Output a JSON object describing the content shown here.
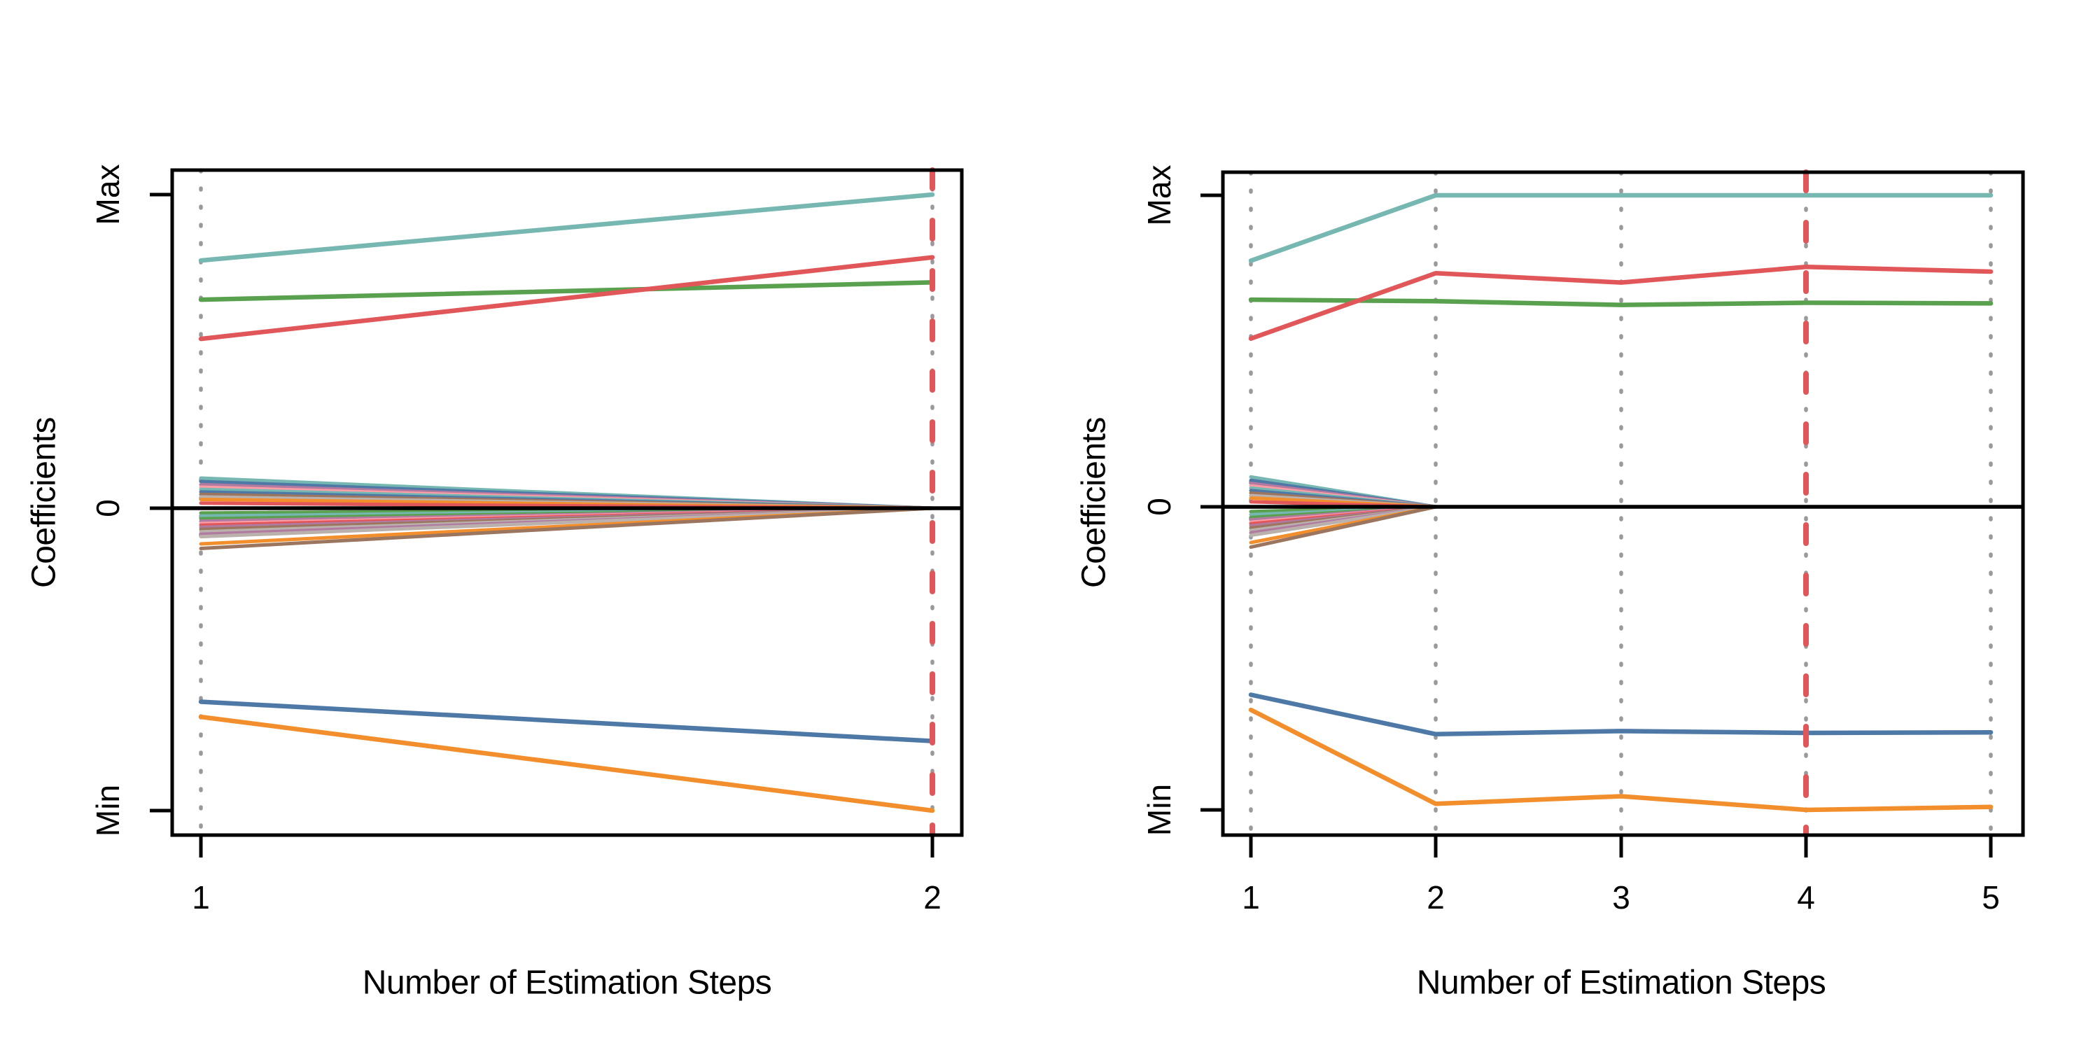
{
  "figure": {
    "background": "#ffffff",
    "axis_color": "#000000",
    "zero_line_color": "#000000",
    "grid_line_color": "#9a9a9a",
    "ref_line_color": "#e15759",
    "palette": {
      "blue": "#4e79a7",
      "orange": "#f28e2b",
      "red": "#e15759",
      "teal": "#76b7b2",
      "green": "#59a14f",
      "purple": "#b07aa1",
      "pink": "#ff9da7",
      "brown": "#9c755f",
      "gray": "#bab0ac"
    }
  },
  "chart_data": [
    {
      "type": "line",
      "title": "",
      "xlabel": "Number of Estimation Steps",
      "ylabel": "Coefficients",
      "x": [
        1,
        2
      ],
      "xtick_labels": [
        "1",
        "2"
      ],
      "ytick_labels": [
        "Max",
        "0",
        "Min"
      ],
      "ylim": [
        "Min",
        "Max"
      ],
      "grid": "vertical dotted at each step",
      "ref_vline_at_step": 2,
      "series": [
        {
          "name": "teal-max-coefficient",
          "color": "#76b7b2",
          "values": [
            0.79,
            1.0
          ]
        },
        {
          "name": "green-coefficient",
          "color": "#59a14f",
          "values": [
            0.665,
            0.72
          ]
        },
        {
          "name": "blue-coefficient",
          "color": "#4e79a7",
          "values": [
            -0.64,
            -0.77
          ]
        },
        {
          "name": "orange-min-coefficient",
          "color": "#f28e2b",
          "values": [
            -0.69,
            -1.0
          ]
        },
        {
          "name": "red-coefficient",
          "color": "#e15759",
          "values": [
            0.54,
            0.8
          ]
        }
      ],
      "cluster": {
        "note": "fan of small coefficients shrinking to exactly 0 after step 1",
        "converges_to": 0,
        "lines": [
          {
            "color": "#76b7b2",
            "start": 0.096
          },
          {
            "color": "#4e79a7",
            "start": 0.085
          },
          {
            "color": "#b07aa1",
            "start": 0.075
          },
          {
            "color": "#ff9da7",
            "start": 0.067
          },
          {
            "color": "#76b7b2",
            "start": 0.06
          },
          {
            "color": "#4e79a7",
            "start": 0.052
          },
          {
            "color": "#9c755f",
            "start": 0.044
          },
          {
            "color": "#bab0ac",
            "start": 0.036
          },
          {
            "color": "#f28e2b",
            "start": 0.028
          },
          {
            "color": "#e15759",
            "start": 0.016
          },
          {
            "color": "#59a14f",
            "start": -0.016
          },
          {
            "color": "#76b7b2",
            "start": -0.026
          },
          {
            "color": "#59a14f",
            "start": -0.035
          },
          {
            "color": "#b07aa1",
            "start": -0.043
          },
          {
            "color": "#ff9da7",
            "start": -0.051
          },
          {
            "color": "#e15759",
            "start": -0.056
          },
          {
            "color": "#b07aa1",
            "start": -0.063
          },
          {
            "color": "#9c755f",
            "start": -0.07
          },
          {
            "color": "#bab0ac",
            "start": -0.078
          },
          {
            "color": "#b07aa1",
            "start": -0.086
          },
          {
            "color": "#bab0ac",
            "start": -0.094
          },
          {
            "color": "#f28e2b",
            "start": -0.118
          },
          {
            "color": "#9c755f",
            "start": -0.133
          }
        ]
      }
    },
    {
      "type": "line",
      "title": "",
      "xlabel": "Number of Estimation Steps",
      "ylabel": "Coefficients",
      "x": [
        1,
        2,
        3,
        4,
        5
      ],
      "xtick_labels": [
        "1",
        "2",
        "3",
        "4",
        "5"
      ],
      "ytick_labels": [
        "Max",
        "0",
        "Min"
      ],
      "ylim": [
        "Min",
        "Max"
      ],
      "grid": "vertical dotted at each step",
      "ref_vline_at_step": 4,
      "series": [
        {
          "name": "teal-max-coefficient",
          "color": "#76b7b2",
          "values": [
            0.79,
            1.0,
            1.0,
            1.0,
            1.0
          ]
        },
        {
          "name": "green-coefficient",
          "color": "#59a14f",
          "values": [
            0.665,
            0.66,
            0.648,
            0.655,
            0.653
          ]
        },
        {
          "name": "blue-coefficient",
          "color": "#4e79a7",
          "values": [
            -0.62,
            -0.75,
            -0.74,
            -0.746,
            -0.744
          ]
        },
        {
          "name": "orange-min-coefficient",
          "color": "#f28e2b",
          "values": [
            -0.67,
            -0.98,
            -0.955,
            -1.0,
            -0.99
          ]
        },
        {
          "name": "red-coefficient",
          "color": "#e15759",
          "values": [
            0.54,
            0.75,
            0.72,
            0.77,
            0.755
          ]
        }
      ],
      "cluster": {
        "note": "fan of small coefficients shrinking to exactly 0 after step 1",
        "converges_to": 0,
        "lines": [
          {
            "color": "#76b7b2",
            "start": 0.096
          },
          {
            "color": "#4e79a7",
            "start": 0.085
          },
          {
            "color": "#b07aa1",
            "start": 0.075
          },
          {
            "color": "#ff9da7",
            "start": 0.067
          },
          {
            "color": "#76b7b2",
            "start": 0.06
          },
          {
            "color": "#4e79a7",
            "start": 0.052
          },
          {
            "color": "#9c755f",
            "start": 0.044
          },
          {
            "color": "#bab0ac",
            "start": 0.036
          },
          {
            "color": "#f28e2b",
            "start": 0.028
          },
          {
            "color": "#e15759",
            "start": 0.016
          },
          {
            "color": "#59a14f",
            "start": -0.016
          },
          {
            "color": "#76b7b2",
            "start": -0.026
          },
          {
            "color": "#59a14f",
            "start": -0.035
          },
          {
            "color": "#b07aa1",
            "start": -0.043
          },
          {
            "color": "#ff9da7",
            "start": -0.051
          },
          {
            "color": "#e15759",
            "start": -0.056
          },
          {
            "color": "#b07aa1",
            "start": -0.063
          },
          {
            "color": "#9c755f",
            "start": -0.07
          },
          {
            "color": "#bab0ac",
            "start": -0.078
          },
          {
            "color": "#b07aa1",
            "start": -0.086
          },
          {
            "color": "#bab0ac",
            "start": -0.094
          },
          {
            "color": "#f28e2b",
            "start": -0.118
          },
          {
            "color": "#9c755f",
            "start": -0.133
          }
        ]
      }
    }
  ]
}
